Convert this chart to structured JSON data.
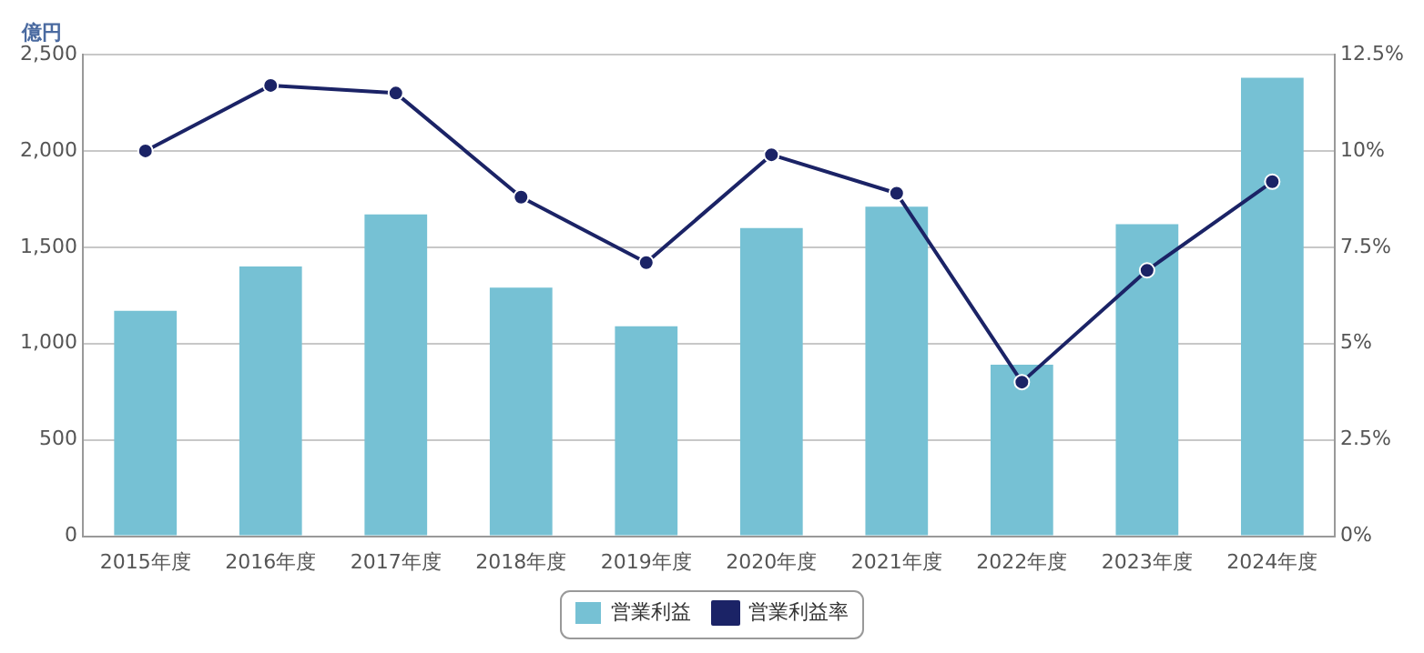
{
  "chart_data": {
    "type": "bar",
    "ylabel": "億円",
    "categories": [
      "2015年度",
      "2016年度",
      "2017年度",
      "2018年度",
      "2019年度",
      "2020年度",
      "2021年度",
      "2022年度",
      "2023年度",
      "2024年度"
    ],
    "series": [
      {
        "name": "営業利益",
        "color": "#76c1d4",
        "values": [
          1170,
          1400,
          1670,
          1290,
          1090,
          1600,
          1710,
          890,
          1620,
          2380
        ]
      },
      {
        "name": "営業利益率",
        "type": "line",
        "axis": "y2",
        "color": "#1b2366",
        "values": [
          10.0,
          11.7,
          11.5,
          8.8,
          7.1,
          9.9,
          8.9,
          4.0,
          6.9,
          9.2
        ]
      }
    ],
    "ylim": [
      0,
      2500
    ],
    "yticks": [
      {
        "value": 0,
        "label": "0"
      },
      {
        "value": 500,
        "label": "500"
      },
      {
        "value": 1000,
        "label": "1,000"
      },
      {
        "value": 1500,
        "label": "1,500"
      },
      {
        "value": 2000,
        "label": "2,000"
      },
      {
        "value": 2500,
        "label": "2,500"
      }
    ],
    "y2lim": [
      0,
      12.5
    ],
    "y2ticks": [
      {
        "value": 0,
        "label": "0%"
      },
      {
        "value": 2.5,
        "label": "2.5%"
      },
      {
        "value": 5,
        "label": "5%"
      },
      {
        "value": 7.5,
        "label": "7.5%"
      },
      {
        "value": 10,
        "label": "10%"
      },
      {
        "value": 12.5,
        "label": "12.5%"
      }
    ],
    "grid": "y",
    "legend": "bottom",
    "marker": "circle",
    "line_style": "solid"
  }
}
